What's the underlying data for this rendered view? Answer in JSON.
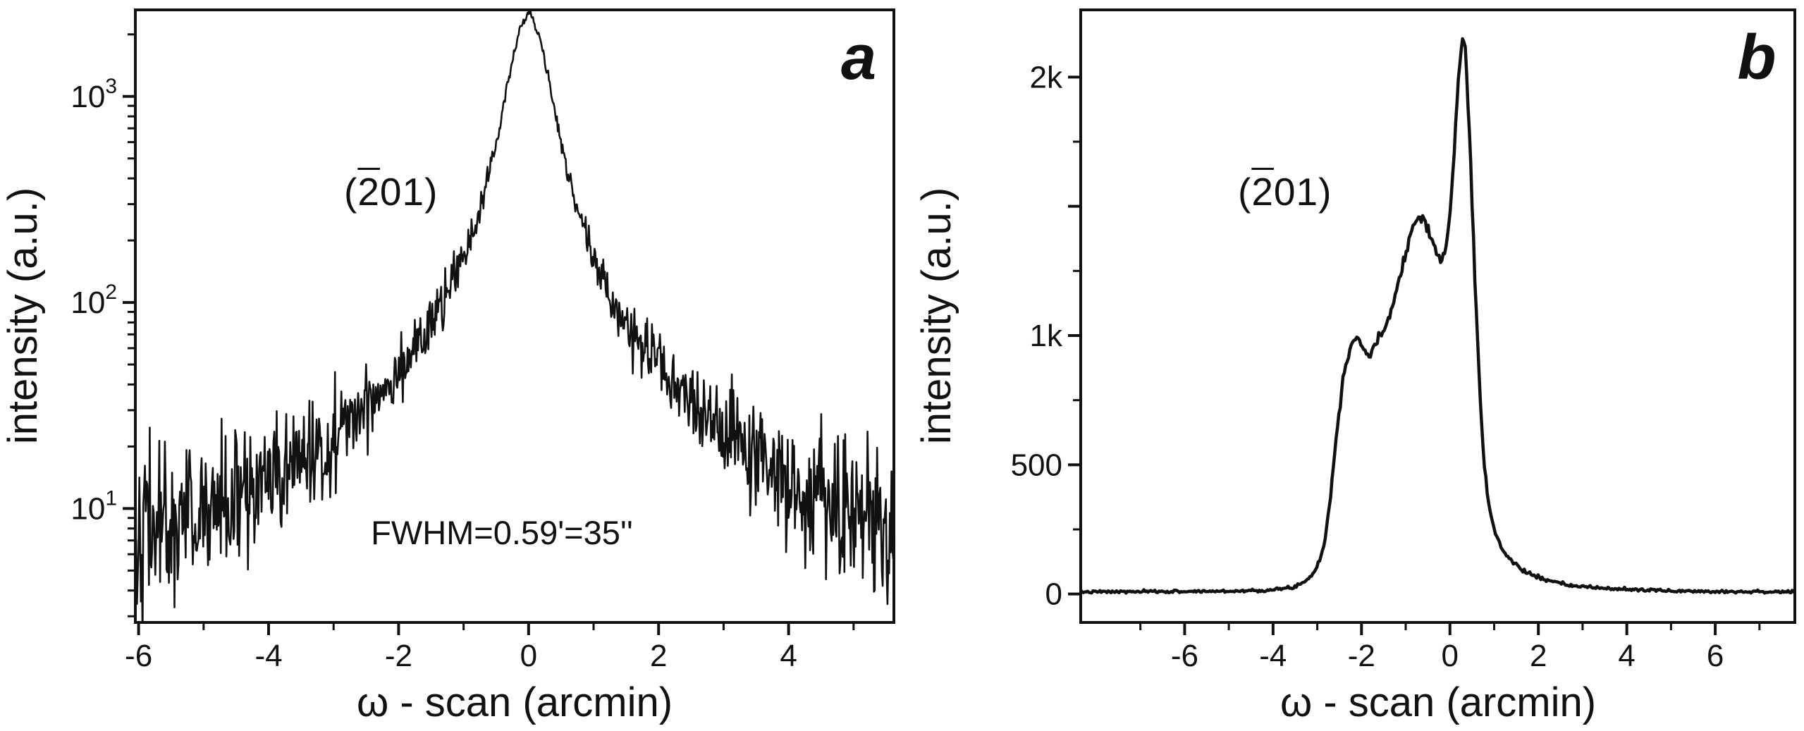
{
  "figure": {
    "background": "#ffffff",
    "curve_color": "#111111",
    "frame_color": "#111111"
  },
  "chart_data": [
    {
      "type": "line",
      "panel": "a",
      "letter": "a",
      "xlabel": "ω - scan (arcmin)",
      "ylabel": "intensity (a.u.)",
      "annotation": "FWHM=0.59'=35''",
      "miller": {
        "open": "(",
        "bar": "2",
        "rest": "01)"
      },
      "yscale": "log",
      "xlim": [
        -6.05,
        5.62
      ],
      "ylim": [
        2.8,
        2630
      ],
      "x_major_ticks": [
        -6,
        -4,
        -2,
        0,
        2,
        4
      ],
      "x_minor_ticks": [
        -5,
        -3,
        -1,
        1,
        3,
        5
      ],
      "y_major_ticks": [
        {
          "base": "10",
          "exp": "1"
        },
        {
          "base": "10",
          "exp": "2"
        },
        {
          "base": "10",
          "exp": "3"
        }
      ],
      "fwhm_arcmin": 0.59,
      "fwhm_arcsec": 35,
      "peak_position": 0,
      "peak_intensity_au": 2600,
      "background_level_au": 8,
      "noise": {
        "model": "poisson-like-multiplicative",
        "coeff": 1.3
      },
      "profile_points": [
        [
          -6.05,
          8
        ],
        [
          -5.5,
          8.5
        ],
        [
          -5,
          9.5
        ],
        [
          -4.5,
          11
        ],
        [
          -4,
          13
        ],
        [
          -3.5,
          17
        ],
        [
          -3,
          22
        ],
        [
          -2.5,
          32
        ],
        [
          -2,
          48
        ],
        [
          -1.6,
          70
        ],
        [
          -1.3,
          100
        ],
        [
          -1,
          165
        ],
        [
          -0.8,
          250
        ],
        [
          -0.6,
          430
        ],
        [
          -0.45,
          700
        ],
        [
          -0.3,
          1250
        ],
        [
          -0.15,
          2050
        ],
        [
          0,
          2600
        ],
        [
          0.15,
          2050
        ],
        [
          0.3,
          1250
        ],
        [
          0.45,
          700
        ],
        [
          0.6,
          430
        ],
        [
          0.8,
          250
        ],
        [
          1,
          165
        ],
        [
          1.3,
          100
        ],
        [
          1.6,
          70
        ],
        [
          2,
          48
        ],
        [
          2.5,
          32
        ],
        [
          3,
          22
        ],
        [
          3.5,
          17
        ],
        [
          4,
          13
        ],
        [
          4.5,
          11
        ],
        [
          5,
          9.5
        ],
        [
          5.5,
          8.5
        ],
        [
          5.62,
          8.3
        ]
      ]
    },
    {
      "type": "line",
      "panel": "b",
      "letter": "b",
      "xlabel": "ω - scan (arcmin)",
      "ylabel": "intensity (a.u.)",
      "miller": {
        "open": "(",
        "bar": "2",
        "rest": "01)"
      },
      "yscale": "linear",
      "xlim": [
        -8.35,
        7.8
      ],
      "ylim": [
        -110,
        2260
      ],
      "x_major_ticks": [
        -6,
        -4,
        -2,
        0,
        2,
        4,
        6
      ],
      "x_minor_ticks": [
        -7,
        -5,
        -3,
        -1,
        1,
        3,
        5,
        7
      ],
      "y_major_ticks": [
        {
          "value": 0,
          "label": "0"
        },
        {
          "value": 500,
          "label": "500"
        },
        {
          "value": 1000,
          "label": "1k"
        },
        {
          "value": 1500,
          "label": ""
        },
        {
          "value": 2000,
          "label": "2k"
        }
      ],
      "y_minor_ticks": [
        250,
        750,
        1250,
        1750
      ],
      "peak_position": 0.28,
      "peak_intensity_au": 2160,
      "background_level_au": 8,
      "noise": {
        "model": "additive",
        "base": 2,
        "coeff": 0.22
      },
      "profile_points": [
        [
          -8.35,
          8
        ],
        [
          -7,
          9
        ],
        [
          -6,
          10
        ],
        [
          -5,
          11
        ],
        [
          -4.5,
          13
        ],
        [
          -4,
          16
        ],
        [
          -3.6,
          24
        ],
        [
          -3.3,
          45
        ],
        [
          -3.05,
          90
        ],
        [
          -2.85,
          180
        ],
        [
          -2.7,
          380
        ],
        [
          -2.55,
          640
        ],
        [
          -2.4,
          860
        ],
        [
          -2.25,
          960
        ],
        [
          -2.1,
          1000
        ],
        [
          -1.95,
          945
        ],
        [
          -1.8,
          920
        ],
        [
          -1.65,
          975
        ],
        [
          -1.5,
          1020
        ],
        [
          -1.35,
          1090
        ],
        [
          -1.2,
          1180
        ],
        [
          -1.05,
          1290
        ],
        [
          -0.9,
          1390
        ],
        [
          -0.75,
          1450
        ],
        [
          -0.6,
          1465
        ],
        [
          -0.45,
          1395
        ],
        [
          -0.3,
          1315
        ],
        [
          -0.2,
          1285
        ],
        [
          -0.1,
          1330
        ],
        [
          0,
          1460
        ],
        [
          0.1,
          1720
        ],
        [
          0.2,
          2020
        ],
        [
          0.28,
          2160
        ],
        [
          0.35,
          2100
        ],
        [
          0.45,
          1750
        ],
        [
          0.55,
          1280
        ],
        [
          0.65,
          880
        ],
        [
          0.75,
          560
        ],
        [
          0.85,
          380
        ],
        [
          1,
          245
        ],
        [
          1.2,
          165
        ],
        [
          1.5,
          110
        ],
        [
          1.8,
          78
        ],
        [
          2.2,
          52
        ],
        [
          2.6,
          36
        ],
        [
          3,
          28
        ],
        [
          3.5,
          22
        ],
        [
          4,
          18
        ],
        [
          5,
          12
        ],
        [
          6,
          10
        ],
        [
          7,
          9
        ],
        [
          7.8,
          8
        ]
      ]
    }
  ]
}
